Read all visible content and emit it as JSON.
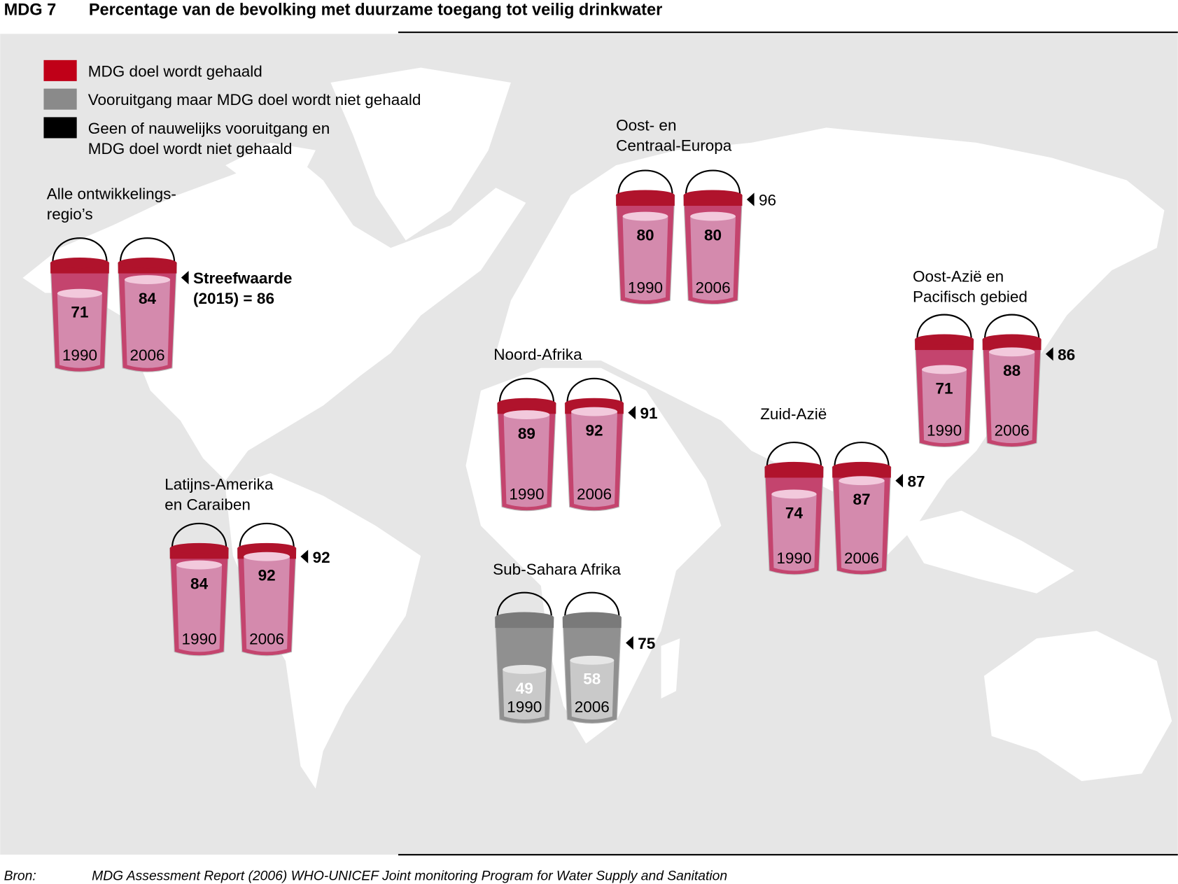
{
  "chart_data": {
    "type": "bucket",
    "label": "MDG 7",
    "title": "Percentage van de bevolking met duurzame toegang tot veilig drinkwater",
    "ylim": [
      0,
      100
    ],
    "legend": [
      {
        "name": [
          "MDG doel wordt gehaald"
        ],
        "color": "#c00018"
      },
      {
        "name": [
          "Vooruitgang maar MDG doel wordt niet gehaald"
        ],
        "color": "#8a8a8a"
      },
      {
        "name": [
          "Geen of nauwelijks vooruitgang en",
          "MDG doel wordt niet gehaald"
        ],
        "color": "#000000"
      }
    ],
    "regions": [
      {
        "name": [
          "Alle ontwikkelings-",
          "regio’s"
        ],
        "color": "#c00018",
        "categories": [
          "1990",
          "2006"
        ],
        "values": [
          71,
          84
        ],
        "target": 86,
        "target_label": [
          "Streefwaarde",
          "(2015) ="
        ]
      },
      {
        "name": [
          "Oost- en",
          "Centraal-Europa"
        ],
        "color": "#c00018",
        "categories": [
          "1990",
          "2006"
        ],
        "values": [
          80,
          80
        ],
        "target": 96
      },
      {
        "name": [
          "Oost-Azië en",
          "Pacifisch gebied"
        ],
        "color": "#c00018",
        "categories": [
          "1990",
          "2006"
        ],
        "values": [
          71,
          88
        ],
        "target": 86
      },
      {
        "name": [
          "Noord-Afrika"
        ],
        "color": "#c00018",
        "categories": [
          "1990",
          "2006"
        ],
        "values": [
          89,
          92
        ],
        "target": 91
      },
      {
        "name": [
          "Zuid-Azië"
        ],
        "color": "#c00018",
        "categories": [
          "1990",
          "2006"
        ],
        "values": [
          74,
          87
        ],
        "target": 87
      },
      {
        "name": [
          "Latijns-Amerika",
          "en Caraiben"
        ],
        "color": "#c00018",
        "categories": [
          "1990",
          "2006"
        ],
        "values": [
          84,
          92
        ],
        "target": 92
      },
      {
        "name": [
          "Sub-Sahara Afrika"
        ],
        "color": "#8a8a8a",
        "categories": [
          "1990",
          "2006"
        ],
        "values": [
          49,
          58
        ],
        "target": 75
      }
    ],
    "source_label": "Bron:",
    "source": "MDG Assessment Report (2006) WHO-UNICEF Joint monitoring Program for Water Supply and Sanitation"
  }
}
